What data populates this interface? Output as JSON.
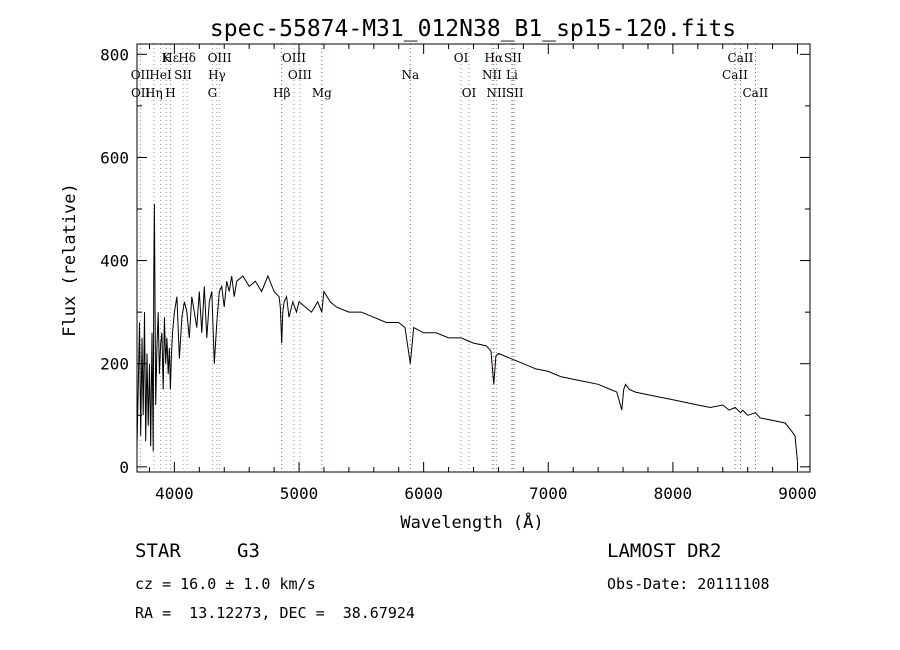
{
  "chart_data": {
    "type": "line",
    "title": "spec-55874-M31_012N38_B1_sp15-120.fits",
    "xlabel": "Wavelength (Å)",
    "ylabel": "Flux (relative)",
    "xlim": [
      3700,
      9100
    ],
    "ylim": [
      -10,
      820
    ],
    "x_ticks": [
      4000,
      5000,
      6000,
      7000,
      8000,
      9000
    ],
    "y_ticks": [
      0,
      200,
      400,
      600,
      800
    ],
    "grid": false,
    "series": [
      {
        "x": [
          3700,
          3710,
          3720,
          3730,
          3740,
          3750,
          3760,
          3770,
          3780,
          3790,
          3800,
          3810,
          3820,
          3830,
          3835,
          3840,
          3850,
          3860,
          3870,
          3880,
          3890,
          3900,
          3910,
          3920,
          3930,
          3940,
          3950,
          3960,
          3968,
          3975,
          3985,
          4000,
          4020,
          4040,
          4060,
          4080,
          4100,
          4120,
          4140,
          4160,
          4180,
          4200,
          4220,
          4240,
          4260,
          4280,
          4300,
          4320,
          4340,
          4360,
          4380,
          4400,
          4420,
          4440,
          4460,
          4480,
          4500,
          4550,
          4600,
          4650,
          4700,
          4750,
          4800,
          4840,
          4850,
          4861,
          4870,
          4880,
          4900,
          4920,
          4950,
          4980,
          5000,
          5050,
          5100,
          5150,
          5183,
          5200,
          5250,
          5300,
          5400,
          5500,
          5600,
          5700,
          5800,
          5850,
          5893,
          5920,
          6000,
          6100,
          6200,
          6300,
          6400,
          6500,
          6540,
          6563,
          6580,
          6600,
          6700,
          6800,
          6900,
          7000,
          7100,
          7200,
          7300,
          7400,
          7500,
          7550,
          7590,
          7605,
          7620,
          7650,
          7700,
          7800,
          7900,
          8000,
          8100,
          8200,
          8300,
          8400,
          8450,
          8500,
          8542,
          8560,
          8600,
          8662,
          8700,
          8800,
          8900,
          8950,
          8980,
          9000
        ],
        "values": [
          40,
          150,
          280,
          60,
          250,
          100,
          300,
          50,
          220,
          80,
          200,
          40,
          260,
          30,
          380,
          510,
          120,
          230,
          300,
          180,
          240,
          260,
          150,
          290,
          200,
          250,
          180,
          230,
          150,
          210,
          260,
          300,
          330,
          210,
          290,
          320,
          300,
          250,
          330,
          300,
          270,
          340,
          260,
          350,
          250,
          320,
          340,
          200,
          280,
          340,
          350,
          310,
          360,
          340,
          370,
          330,
          360,
          370,
          350,
          360,
          340,
          370,
          340,
          330,
          310,
          240,
          300,
          320,
          330,
          290,
          320,
          300,
          320,
          310,
          300,
          320,
          300,
          340,
          320,
          310,
          300,
          300,
          290,
          280,
          280,
          270,
          200,
          270,
          260,
          260,
          250,
          250,
          240,
          235,
          225,
          160,
          215,
          220,
          210,
          200,
          190,
          185,
          175,
          170,
          165,
          160,
          150,
          145,
          110,
          150,
          160,
          150,
          145,
          140,
          135,
          130,
          125,
          120,
          115,
          120,
          110,
          115,
          105,
          110,
          100,
          105,
          95,
          90,
          85,
          70,
          60,
          10
        ]
      }
    ],
    "line_labels": [
      {
        "label": "Hε",
        "x": 3970,
        "row": 0
      },
      {
        "label": "K",
        "x": 3934,
        "row": 0
      },
      {
        "label": "Hδ",
        "x": 4102,
        "row": 0
      },
      {
        "label": "OIII",
        "x": 4363,
        "row": 0
      },
      {
        "label": "OIII",
        "x": 4959,
        "row": 0
      },
      {
        "label": "OI",
        "x": 6300,
        "row": 0
      },
      {
        "label": "Hα",
        "x": 6563,
        "row": 0
      },
      {
        "label": "SII",
        "x": 6716,
        "row": 0
      },
      {
        "label": "CaII",
        "x": 8542,
        "row": 0
      },
      {
        "label": "OII",
        "x": 3727,
        "row": 1
      },
      {
        "label": "HeI",
        "x": 3889,
        "row": 1
      },
      {
        "label": "SII",
        "x": 4069,
        "row": 1
      },
      {
        "label": "Hγ",
        "x": 4341,
        "row": 1
      },
      {
        "label": "OIII",
        "x": 5007,
        "row": 1
      },
      {
        "label": "Na",
        "x": 5893,
        "row": 1
      },
      {
        "label": "NII",
        "x": 6548,
        "row": 1
      },
      {
        "label": "Li",
        "x": 6708,
        "row": 1
      },
      {
        "label": "CaII",
        "x": 8498,
        "row": 1
      },
      {
        "label": "OII",
        "x": 3729,
        "row": 2
      },
      {
        "label": "Hη",
        "x": 3835,
        "row": 2
      },
      {
        "label": "H",
        "x": 3969,
        "row": 2
      },
      {
        "label": "G",
        "x": 4305,
        "row": 2
      },
      {
        "label": "Hβ",
        "x": 4861,
        "row": 2
      },
      {
        "label": "Mg",
        "x": 5183,
        "row": 2
      },
      {
        "label": "OI",
        "x": 6364,
        "row": 2
      },
      {
        "label": "NII",
        "x": 6584,
        "row": 2
      },
      {
        "label": "SII",
        "x": 6731,
        "row": 2
      },
      {
        "label": "CaII",
        "x": 8662,
        "row": 2
      }
    ],
    "line_markers": [
      {
        "x": 3727,
        "color": "#999999"
      },
      {
        "x": 3835,
        "color": "#999999"
      },
      {
        "x": 3889,
        "color": "#999999"
      },
      {
        "x": 3934,
        "color": "#999999"
      },
      {
        "x": 3969,
        "color": "#999999"
      },
      {
        "x": 4069,
        "color": "#999999"
      },
      {
        "x": 4102,
        "color": "#999999"
      },
      {
        "x": 4305,
        "color": "#999999"
      },
      {
        "x": 4341,
        "color": "#999999"
      },
      {
        "x": 4363,
        "color": "#999999"
      },
      {
        "x": 4861,
        "color": "#cc4444"
      },
      {
        "x": 4959,
        "color": "#999999"
      },
      {
        "x": 5007,
        "color": "#999999"
      },
      {
        "x": 5183,
        "color": "#cc4444"
      },
      {
        "x": 5893,
        "color": "#cc4444"
      },
      {
        "x": 6300,
        "color": "#999999"
      },
      {
        "x": 6364,
        "color": "#999999"
      },
      {
        "x": 6548,
        "color": "#999999"
      },
      {
        "x": 6563,
        "color": "#cc4444"
      },
      {
        "x": 6584,
        "color": "#999999"
      },
      {
        "x": 6708,
        "color": "#cc4444"
      },
      {
        "x": 6716,
        "color": "#999999"
      },
      {
        "x": 6731,
        "color": "#999999"
      },
      {
        "x": 8498,
        "color": "#cc4444"
      },
      {
        "x": 8542,
        "color": "#cc4444"
      },
      {
        "x": 8662,
        "color": "#cc4444"
      }
    ]
  },
  "info": {
    "class_label": "STAR",
    "subclass": "G3",
    "survey": "LAMOST DR2",
    "cz": "cz = 16.0 ± 1.0 km/s",
    "obs_date": "Obs-Date: 20111108",
    "coords": "RA =  13.12273, DEC =  38.67924"
  }
}
